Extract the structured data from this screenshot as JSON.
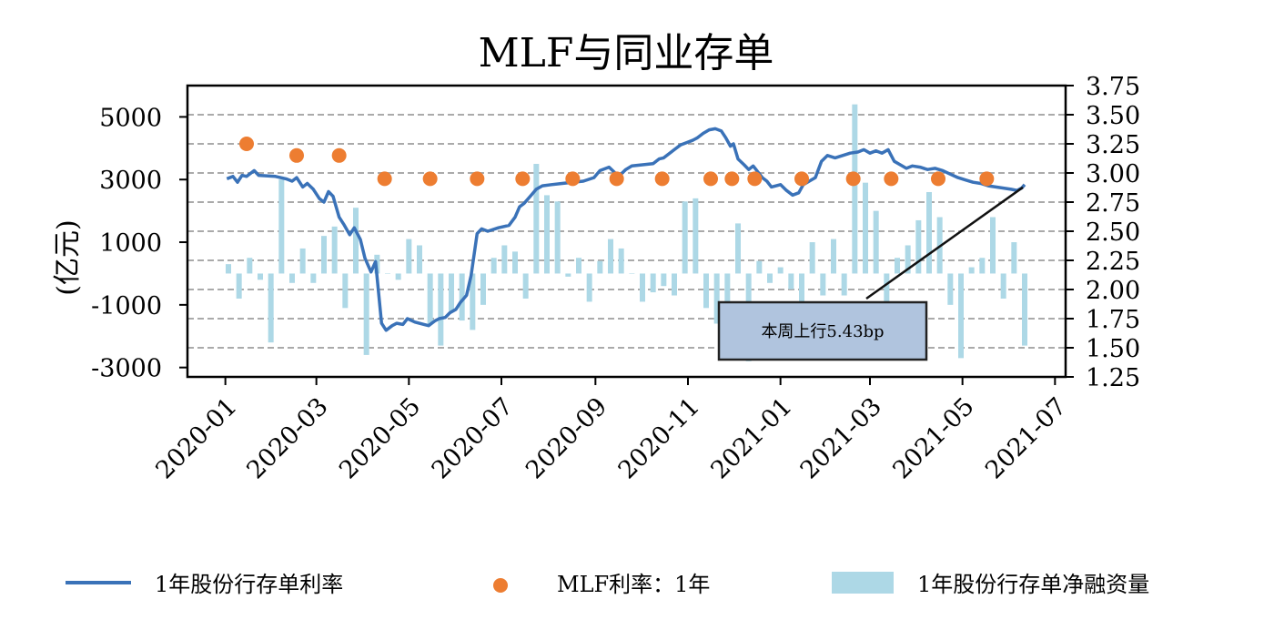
{
  "chart_data": {
    "title": "MLF与同业存单",
    "type": "bar+line+scatter",
    "ylabel_left": "(亿元)",
    "ylabel_right": "",
    "ylim_left": [
      -3300,
      6000
    ],
    "ylim_right": [
      1.25,
      3.75
    ],
    "yticks_left": [
      "5000",
      "3000",
      "1000",
      "-1000",
      "-3000"
    ],
    "yticks_right": [
      "3.75",
      "3.50",
      "3.25",
      "3.00",
      "2.75",
      "2.50",
      "2.25",
      "2.00",
      "1.75",
      "1.50",
      "1.25"
    ],
    "xlim": [
      "2019-12-07",
      "2021-07-08"
    ],
    "xticks": [
      "2020-01",
      "2020-03",
      "2020-05",
      "2020-07",
      "2020-09",
      "2020-11",
      "2021-01",
      "2021-03",
      "2021-05",
      "2021-07"
    ],
    "grid": "horizontal dashed (right axis)",
    "legend_position": "bottom",
    "colors": {
      "line": "#3a72b8",
      "dots": "#ed7d31",
      "bars": "#add8e6",
      "annot_bg": "#b0c4de"
    },
    "series": [
      {
        "name": "1年股份行存单利率",
        "type": "line",
        "axis": "right",
        "points": [
          [
            "2020-01-02",
            2.95
          ],
          [
            "2020-01-06",
            2.97
          ],
          [
            "2020-01-09",
            2.92
          ],
          [
            "2020-01-12",
            2.98
          ],
          [
            "2020-01-15",
            2.97
          ],
          [
            "2020-01-20",
            3.02
          ],
          [
            "2020-01-23",
            2.98
          ],
          [
            "2020-02-03",
            2.97
          ],
          [
            "2020-02-10",
            2.95
          ],
          [
            "2020-02-14",
            2.93
          ],
          [
            "2020-02-17",
            2.96
          ],
          [
            "2020-02-21",
            2.88
          ],
          [
            "2020-02-24",
            2.91
          ],
          [
            "2020-02-28",
            2.86
          ],
          [
            "2020-03-03",
            2.78
          ],
          [
            "2020-03-06",
            2.75
          ],
          [
            "2020-03-09",
            2.84
          ],
          [
            "2020-03-12",
            2.8
          ],
          [
            "2020-03-16",
            2.62
          ],
          [
            "2020-03-19",
            2.56
          ],
          [
            "2020-03-23",
            2.47
          ],
          [
            "2020-03-26",
            2.53
          ],
          [
            "2020-03-30",
            2.43
          ],
          [
            "2020-04-02",
            2.27
          ],
          [
            "2020-04-06",
            2.15
          ],
          [
            "2020-04-09",
            2.24
          ],
          [
            "2020-04-13",
            1.71
          ],
          [
            "2020-04-16",
            1.65
          ],
          [
            "2020-04-20",
            1.69
          ],
          [
            "2020-04-23",
            1.71
          ],
          [
            "2020-04-27",
            1.7
          ],
          [
            "2020-04-30",
            1.75
          ],
          [
            "2020-05-05",
            1.72
          ],
          [
            "2020-05-11",
            1.7
          ],
          [
            "2020-05-14",
            1.69
          ],
          [
            "2020-05-18",
            1.73
          ],
          [
            "2020-05-21",
            1.75
          ],
          [
            "2020-05-25",
            1.76
          ],
          [
            "2020-05-28",
            1.8
          ],
          [
            "2020-06-01",
            1.83
          ],
          [
            "2020-06-04",
            1.89
          ],
          [
            "2020-06-08",
            1.95
          ],
          [
            "2020-06-11",
            2.12
          ],
          [
            "2020-06-15",
            2.48
          ],
          [
            "2020-06-18",
            2.52
          ],
          [
            "2020-06-22",
            2.5
          ],
          [
            "2020-06-29",
            2.53
          ],
          [
            "2020-07-06",
            2.55
          ],
          [
            "2020-07-10",
            2.62
          ],
          [
            "2020-07-13",
            2.71
          ],
          [
            "2020-07-16",
            2.74
          ],
          [
            "2020-07-20",
            2.8
          ],
          [
            "2020-07-24",
            2.86
          ],
          [
            "2020-07-28",
            2.89
          ],
          [
            "2020-08-03",
            2.9
          ],
          [
            "2020-08-10",
            2.91
          ],
          [
            "2020-08-17",
            2.92
          ],
          [
            "2020-08-24",
            2.93
          ],
          [
            "2020-08-31",
            2.96
          ],
          [
            "2020-09-04",
            3.02
          ],
          [
            "2020-09-10",
            3.05
          ],
          [
            "2020-09-14",
            3.0
          ],
          [
            "2020-09-17",
            2.98
          ],
          [
            "2020-09-21",
            3.03
          ],
          [
            "2020-09-25",
            3.06
          ],
          [
            "2020-10-02",
            3.07
          ],
          [
            "2020-10-09",
            3.08
          ],
          [
            "2020-10-13",
            3.12
          ],
          [
            "2020-10-16",
            3.13
          ],
          [
            "2020-10-20",
            3.17
          ],
          [
            "2020-10-23",
            3.2
          ],
          [
            "2020-10-27",
            3.24
          ],
          [
            "2020-10-31",
            3.26
          ],
          [
            "2020-11-04",
            3.28
          ],
          [
            "2020-11-07",
            3.3
          ],
          [
            "2020-11-11",
            3.34
          ],
          [
            "2020-11-15",
            3.37
          ],
          [
            "2020-11-19",
            3.38
          ],
          [
            "2020-11-23",
            3.36
          ],
          [
            "2020-11-26",
            3.3
          ],
          [
            "2020-11-29",
            3.23
          ],
          [
            "2020-12-01",
            3.25
          ],
          [
            "2020-12-04",
            3.12
          ],
          [
            "2020-12-08",
            3.07
          ],
          [
            "2020-12-11",
            3.03
          ],
          [
            "2020-12-14",
            3.06
          ],
          [
            "2020-12-17",
            3.01
          ],
          [
            "2020-12-20",
            2.96
          ],
          [
            "2020-12-23",
            2.93
          ],
          [
            "2020-12-26",
            2.88
          ],
          [
            "2021-01-01",
            2.9
          ],
          [
            "2021-01-05",
            2.85
          ],
          [
            "2021-01-09",
            2.81
          ],
          [
            "2021-01-13",
            2.83
          ],
          [
            "2021-01-16",
            2.9
          ],
          [
            "2021-01-20",
            2.93
          ],
          [
            "2021-01-24",
            2.96
          ],
          [
            "2021-01-28",
            3.1
          ],
          [
            "2021-02-01",
            3.15
          ],
          [
            "2021-02-06",
            3.13
          ],
          [
            "2021-02-11",
            3.15
          ],
          [
            "2021-02-16",
            3.17
          ],
          [
            "2021-02-21",
            3.18
          ],
          [
            "2021-02-25",
            3.2
          ],
          [
            "2021-03-01",
            3.17
          ],
          [
            "2021-03-05",
            3.19
          ],
          [
            "2021-03-09",
            3.17
          ],
          [
            "2021-03-13",
            3.2
          ],
          [
            "2021-03-17",
            3.1
          ],
          [
            "2021-03-21",
            3.07
          ],
          [
            "2021-03-25",
            3.04
          ],
          [
            "2021-03-29",
            3.06
          ],
          [
            "2021-04-03",
            3.05
          ],
          [
            "2021-04-08",
            3.03
          ],
          [
            "2021-04-13",
            3.04
          ],
          [
            "2021-04-18",
            3.02
          ],
          [
            "2021-04-23",
            2.99
          ],
          [
            "2021-04-28",
            2.96
          ],
          [
            "2021-05-03",
            2.94
          ],
          [
            "2021-05-08",
            2.92
          ],
          [
            "2021-05-13",
            2.91
          ],
          [
            "2021-05-18",
            2.89
          ],
          [
            "2021-05-23",
            2.88
          ],
          [
            "2021-05-28",
            2.87
          ],
          [
            "2021-06-02",
            2.86
          ],
          [
            "2021-06-06",
            2.85
          ],
          [
            "2021-06-09",
            2.87
          ],
          [
            "2021-06-11",
            2.9
          ]
        ]
      },
      {
        "name": "MLF利率：1年",
        "type": "scatter",
        "axis": "right",
        "points": [
          [
            "2020-01-15",
            3.25
          ],
          [
            "2020-02-17",
            3.15
          ],
          [
            "2020-03-16",
            3.15
          ],
          [
            "2020-04-15",
            2.95
          ],
          [
            "2020-05-15",
            2.95
          ],
          [
            "2020-06-15",
            2.95
          ],
          [
            "2020-07-15",
            2.95
          ],
          [
            "2020-08-17",
            2.95
          ],
          [
            "2020-09-15",
            2.95
          ],
          [
            "2020-10-15",
            2.95
          ],
          [
            "2020-11-16",
            2.95
          ],
          [
            "2020-11-30",
            2.95
          ],
          [
            "2020-12-15",
            2.95
          ],
          [
            "2021-01-15",
            2.95
          ],
          [
            "2021-02-18",
            2.95
          ],
          [
            "2021-03-15",
            2.95
          ],
          [
            "2021-04-15",
            2.95
          ],
          [
            "2021-05-17",
            2.95
          ]
        ]
      },
      {
        "name": "1年股份行存单净融资量",
        "type": "bar",
        "axis": "left",
        "points": [
          [
            "2020-01-03",
            300
          ],
          [
            "2020-01-10",
            -800
          ],
          [
            "2020-01-17",
            500
          ],
          [
            "2020-01-24",
            -200
          ],
          [
            "2020-01-31",
            -2200
          ],
          [
            "2020-02-07",
            3000
          ],
          [
            "2020-02-14",
            -300
          ],
          [
            "2020-02-21",
            800
          ],
          [
            "2020-02-28",
            -300
          ],
          [
            "2020-03-06",
            1200
          ],
          [
            "2020-03-13",
            1500
          ],
          [
            "2020-03-20",
            -1100
          ],
          [
            "2020-03-27",
            2100
          ],
          [
            "2020-04-03",
            -2600
          ],
          [
            "2020-04-10",
            600
          ],
          [
            "2020-04-17",
            0
          ],
          [
            "2020-04-24",
            -200
          ],
          [
            "2020-05-01",
            1100
          ],
          [
            "2020-05-08",
            900
          ],
          [
            "2020-05-15",
            -1600
          ],
          [
            "2020-05-22",
            -2300
          ],
          [
            "2020-05-29",
            -1200
          ],
          [
            "2020-06-05",
            -1500
          ],
          [
            "2020-06-12",
            -1800
          ],
          [
            "2020-06-19",
            -1000
          ],
          [
            "2020-06-26",
            500
          ],
          [
            "2020-07-03",
            900
          ],
          [
            "2020-07-10",
            700
          ],
          [
            "2020-07-17",
            -800
          ],
          [
            "2020-07-24",
            3500
          ],
          [
            "2020-07-31",
            2500
          ],
          [
            "2020-08-07",
            2300
          ],
          [
            "2020-08-14",
            -100
          ],
          [
            "2020-08-21",
            500
          ],
          [
            "2020-08-28",
            -900
          ],
          [
            "2020-09-04",
            400
          ],
          [
            "2020-09-11",
            1100
          ],
          [
            "2020-09-18",
            800
          ],
          [
            "2020-09-25",
            0
          ],
          [
            "2020-10-02",
            -900
          ],
          [
            "2020-10-09",
            -600
          ],
          [
            "2020-10-16",
            -400
          ],
          [
            "2020-10-23",
            -700
          ],
          [
            "2020-10-30",
            2300
          ],
          [
            "2020-11-06",
            2400
          ],
          [
            "2020-11-13",
            -1100
          ],
          [
            "2020-11-20",
            -1600
          ],
          [
            "2020-11-27",
            -1500
          ],
          [
            "2020-12-04",
            1600
          ],
          [
            "2020-12-11",
            -2800
          ],
          [
            "2020-12-18",
            400
          ],
          [
            "2020-12-25",
            -300
          ],
          [
            "2021-01-01",
            200
          ],
          [
            "2021-01-08",
            -500
          ],
          [
            "2021-01-15",
            -1000
          ],
          [
            "2021-01-22",
            1000
          ],
          [
            "2021-01-29",
            -700
          ],
          [
            "2021-02-05",
            1100
          ],
          [
            "2021-02-12",
            -700
          ],
          [
            "2021-02-19",
            5400
          ],
          [
            "2021-02-26",
            2900
          ],
          [
            "2021-03-05",
            2000
          ],
          [
            "2021-03-12",
            -1300
          ],
          [
            "2021-03-19",
            500
          ],
          [
            "2021-03-26",
            900
          ],
          [
            "2021-04-02",
            1700
          ],
          [
            "2021-04-09",
            2600
          ],
          [
            "2021-04-16",
            1800
          ],
          [
            "2021-04-23",
            -1000
          ],
          [
            "2021-04-30",
            -2700
          ],
          [
            "2021-05-07",
            200
          ],
          [
            "2021-05-14",
            500
          ],
          [
            "2021-05-21",
            1800
          ],
          [
            "2021-05-28",
            -800
          ],
          [
            "2021-06-04",
            1000
          ],
          [
            "2021-06-11",
            -2300
          ]
        ]
      }
    ],
    "annotation": {
      "text": "本周上行5.43bp",
      "target": [
        "2021-06-11",
        2.9
      ]
    }
  },
  "legend": {
    "line_label": "1年股份行存单利率",
    "dot_label": "MLF利率：1年",
    "bar_label": "1年股份行存单净融资量"
  }
}
